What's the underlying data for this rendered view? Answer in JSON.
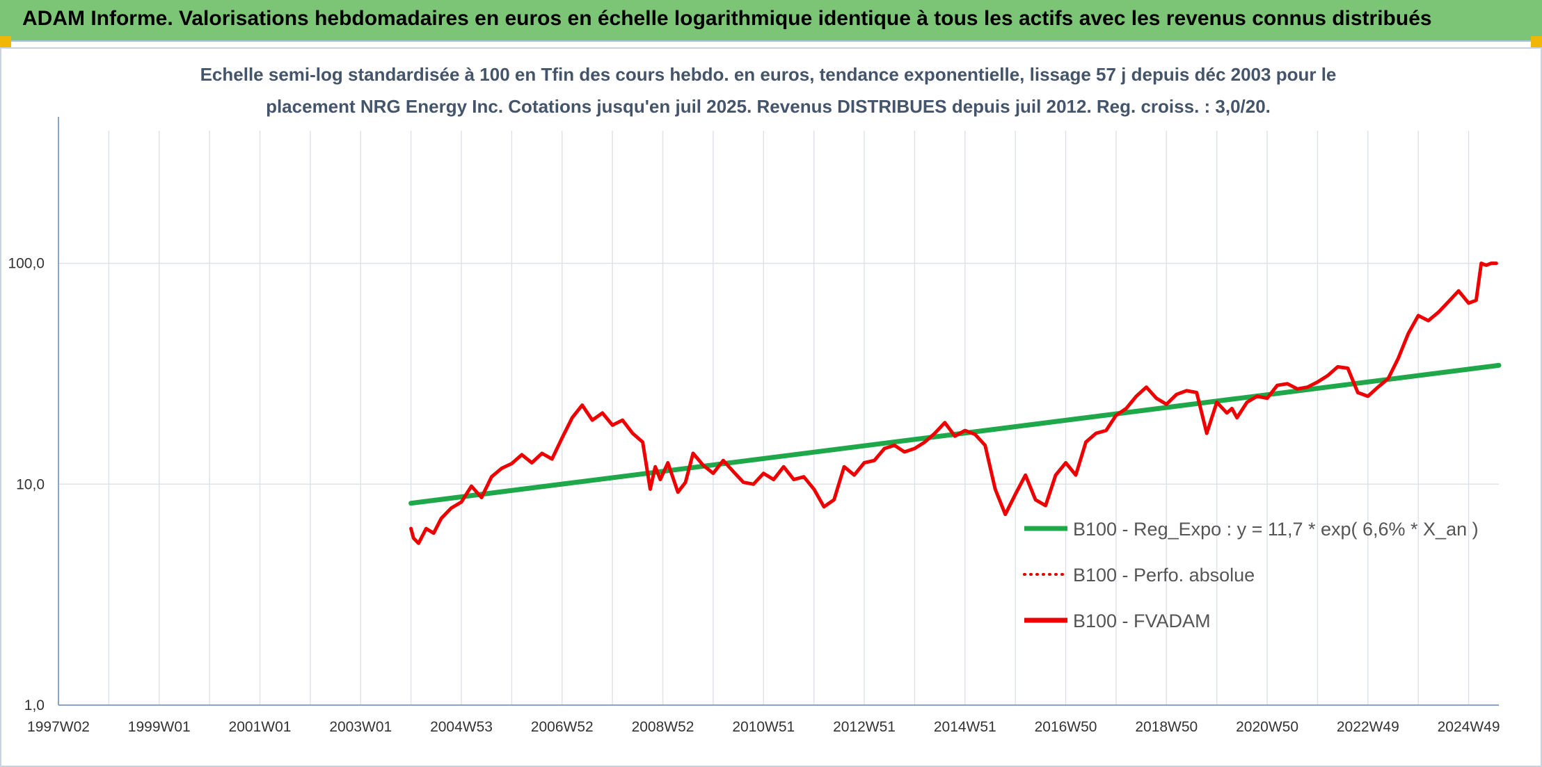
{
  "header": {
    "title": "ADAM Informe. Valorisations hebdomadaires en euros en échelle logarithmique identique à tous les actifs avec les revenus connus distribués"
  },
  "colors": {
    "header_bg": "#7cc576",
    "trend": "#1ea84a",
    "fvadam": "#ee0000",
    "perfo": "#e80000",
    "grid": "#dfe3e8",
    "axis": "#8aa3c8"
  },
  "chart_data": {
    "type": "line",
    "subtitle_lines": [
      "Echelle semi-log standardisée à 100 en Tfin des cours hebdo. en euros, tendance exponentielle, lissage 57 j depuis déc 2003 pour le",
      "placement NRG Energy Inc. Cotations jusqu'en juil 2025. Revenus DISTRIBUES depuis juil 2012. Reg. croiss. : 3,0/20."
    ],
    "y_scale": "log",
    "ylim": [
      1,
      100
    ],
    "y_ticks": [
      {
        "value": 1,
        "label": "1,0"
      },
      {
        "value": 10,
        "label": "10,0"
      },
      {
        "value": 100,
        "label": "100,0"
      }
    ],
    "xlim": [
      1997.0,
      2025.6
    ],
    "x_ticks": [
      {
        "value": 1997.0,
        "label": "1997W02"
      },
      {
        "value": 1999.0,
        "label": "1999W01"
      },
      {
        "value": 2001.0,
        "label": "2001W01"
      },
      {
        "value": 2003.0,
        "label": "2003W01"
      },
      {
        "value": 2005.0,
        "label": "2004W53"
      },
      {
        "value": 2007.0,
        "label": "2006W52"
      },
      {
        "value": 2009.0,
        "label": "2008W52"
      },
      {
        "value": 2011.0,
        "label": "2010W51"
      },
      {
        "value": 2013.0,
        "label": "2012W51"
      },
      {
        "value": 2015.0,
        "label": "2014W51"
      },
      {
        "value": 2017.0,
        "label": "2016W50"
      },
      {
        "value": 2019.0,
        "label": "2018W50"
      },
      {
        "value": 2021.0,
        "label": "2020W50"
      },
      {
        "value": 2023.0,
        "label": "2022W49"
      },
      {
        "value": 2025.0,
        "label": "2024W49"
      }
    ],
    "gridlines": true,
    "legend_position": "bottom-right",
    "series": [
      {
        "name": "B100 - Reg_Expo : y = 11,7 * exp( 6,6% *  X_an )",
        "style": "solid",
        "x": [
          2004.0,
          2025.6
        ],
        "y": [
          8.2,
          34.5
        ]
      },
      {
        "name": "B100 - Perfo. absolue",
        "style": "dotted",
        "x": [],
        "y": []
      },
      {
        "name": "B100 - FVADAM",
        "style": "solid",
        "x": [
          2004.0,
          2004.05,
          2004.15,
          2004.3,
          2004.45,
          2004.6,
          2004.8,
          2005.0,
          2005.2,
          2005.4,
          2005.6,
          2005.8,
          2006.0,
          2006.2,
          2006.4,
          2006.6,
          2006.8,
          2007.0,
          2007.2,
          2007.4,
          2007.6,
          2007.8,
          2008.0,
          2008.2,
          2008.4,
          2008.6,
          2008.75,
          2008.85,
          2008.95,
          2009.1,
          2009.3,
          2009.45,
          2009.6,
          2009.8,
          2010.0,
          2010.2,
          2010.4,
          2010.6,
          2010.8,
          2011.0,
          2011.2,
          2011.4,
          2011.6,
          2011.8,
          2012.0,
          2012.2,
          2012.4,
          2012.6,
          2012.8,
          2013.0,
          2013.2,
          2013.4,
          2013.6,
          2013.8,
          2014.0,
          2014.2,
          2014.4,
          2014.6,
          2014.8,
          2015.0,
          2015.2,
          2015.4,
          2015.6,
          2015.8,
          2016.0,
          2016.2,
          2016.4,
          2016.6,
          2016.8,
          2017.0,
          2017.2,
          2017.4,
          2017.6,
          2017.8,
          2018.0,
          2018.2,
          2018.4,
          2018.6,
          2018.8,
          2019.0,
          2019.2,
          2019.4,
          2019.6,
          2019.8,
          2020.0,
          2020.2,
          2020.3,
          2020.4,
          2020.6,
          2020.8,
          2021.0,
          2021.2,
          2021.4,
          2021.6,
          2021.8,
          2022.0,
          2022.2,
          2022.4,
          2022.6,
          2022.8,
          2023.0,
          2023.2,
          2023.4,
          2023.6,
          2023.8,
          2024.0,
          2024.2,
          2024.4,
          2024.6,
          2024.8,
          2025.0,
          2025.15,
          2025.25,
          2025.35,
          2025.45,
          2025.55
        ],
        "y": [
          6.3,
          5.7,
          5.4,
          6.3,
          6.0,
          7.0,
          7.8,
          8.3,
          9.8,
          8.7,
          10.8,
          11.8,
          12.4,
          13.6,
          12.5,
          13.8,
          13.0,
          16.2,
          20.0,
          22.8,
          19.5,
          21.0,
          18.5,
          19.5,
          17.0,
          15.5,
          9.5,
          12.0,
          10.5,
          12.5,
          9.2,
          10.2,
          13.8,
          12.2,
          11.2,
          12.8,
          11.4,
          10.2,
          10.0,
          11.2,
          10.5,
          12.0,
          10.5,
          10.8,
          9.5,
          7.9,
          8.5,
          12.0,
          11.0,
          12.5,
          12.8,
          14.5,
          15.0,
          14.0,
          14.5,
          15.5,
          17.0,
          19.0,
          16.5,
          17.5,
          16.8,
          15.0,
          9.5,
          7.3,
          9.0,
          11.0,
          8.5,
          8.0,
          11.0,
          12.5,
          11.0,
          15.5,
          17.0,
          17.5,
          20.5,
          22.0,
          25.0,
          27.5,
          24.5,
          23.0,
          25.5,
          26.5,
          26.0,
          17.0,
          23.5,
          21.0,
          22.0,
          20.0,
          23.5,
          25.0,
          24.5,
          28.0,
          28.5,
          27.0,
          27.5,
          29.0,
          31.0,
          34.0,
          33.5,
          26.0,
          25.0,
          27.5,
          30.0,
          37.0,
          48.0,
          58.0,
          55.0,
          60.0,
          67.0,
          75.0,
          66.0,
          68.0,
          100.0,
          98.0,
          100.0,
          100.0
        ]
      }
    ]
  }
}
